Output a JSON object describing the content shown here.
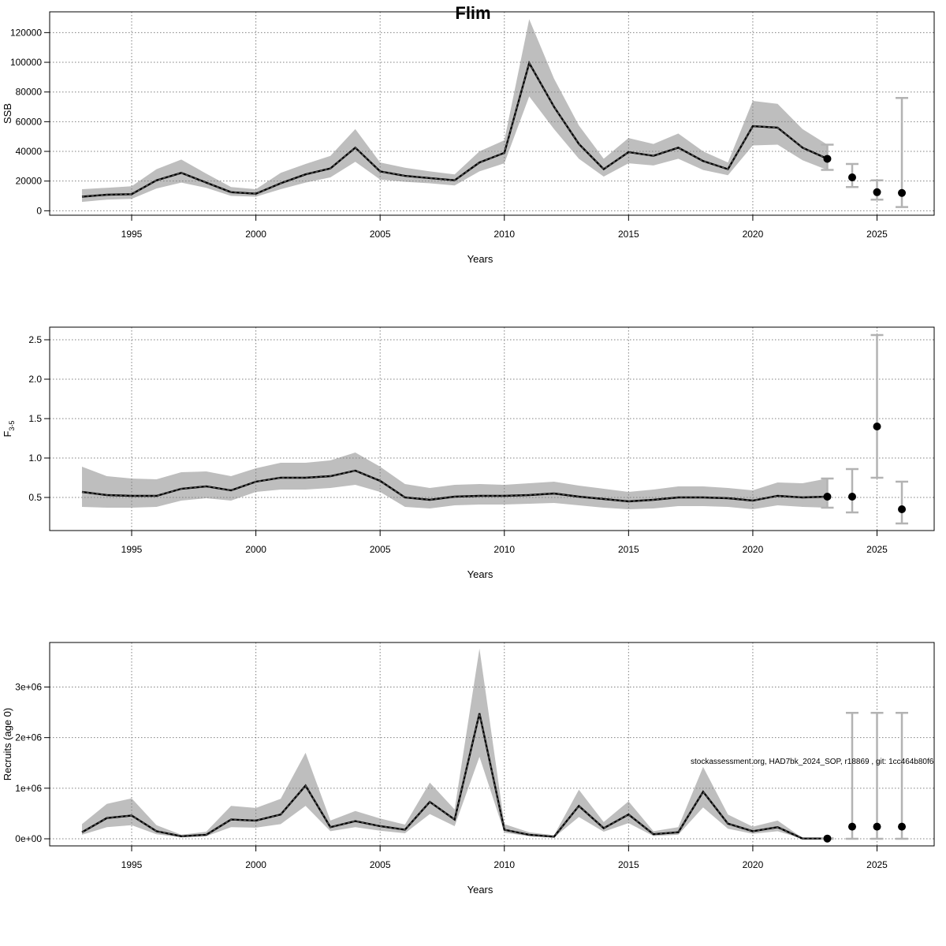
{
  "title": "Flim",
  "credit": "stockassessment.org, HAD7bk_2024_SOP, r18869 , git: 1cc464b80f6",
  "colors": {
    "band": "#bebebe",
    "line": "#000000",
    "grid": "#808080",
    "errorbar": "#b3b3b3"
  },
  "chart_data": [
    {
      "type": "line",
      "ylabel": "SSB",
      "xlabel": "Years",
      "xlim": [
        1991.7,
        2027.3
      ],
      "ylim": [
        -3000,
        134000
      ],
      "xticks": [
        1995,
        2000,
        2005,
        2010,
        2015,
        2020,
        2025
      ],
      "yticks": [
        0,
        20000,
        40000,
        60000,
        80000,
        100000,
        120000
      ],
      "ytick_labels": [
        "0",
        "20000",
        "40000",
        "60000",
        "80000",
        "100000",
        "120000"
      ],
      "grid": true,
      "series": [
        {
          "x": [
            1993,
            1994,
            1995,
            1996,
            1997,
            1998,
            1999,
            2000,
            2001,
            2002,
            2003,
            2004,
            2005,
            2006,
            2007,
            2008,
            2009,
            2010,
            2011,
            2012,
            2013,
            2014,
            2015,
            2016,
            2017,
            2018,
            2019,
            2020,
            2021,
            2022,
            2023
          ],
          "estimate": [
            9500,
            10800,
            11200,
            20500,
            25500,
            19000,
            12500,
            11500,
            18500,
            24500,
            28500,
            42500,
            26500,
            23500,
            22000,
            20500,
            32500,
            39000,
            99500,
            70000,
            45000,
            28000,
            39500,
            37000,
            42500,
            33500,
            28000,
            57000,
            56000,
            42500,
            35000
          ],
          "lower": [
            6000,
            7500,
            8000,
            15000,
            19000,
            15500,
            10000,
            9500,
            14500,
            19000,
            22500,
            33000,
            21000,
            19500,
            18500,
            17000,
            26500,
            32000,
            77000,
            55000,
            35000,
            23000,
            32000,
            30500,
            35000,
            27500,
            24000,
            44000,
            44500,
            34000,
            27500
          ],
          "upper": [
            14500,
            15500,
            16500,
            28000,
            34500,
            25000,
            16000,
            14500,
            25500,
            31500,
            37000,
            55000,
            32500,
            29000,
            26500,
            24500,
            40000,
            47500,
            129000,
            89000,
            57500,
            35000,
            49000,
            45000,
            52000,
            40000,
            32500,
            74000,
            72000,
            55000,
            44500
          ]
        }
      ],
      "forecast": {
        "x": [
          2023,
          2024,
          2025,
          2026
        ],
        "values": [
          35000,
          22500,
          12500,
          12000
        ],
        "lower": [
          27500,
          16000,
          7500,
          2500
        ],
        "upper": [
          44500,
          31500,
          20500,
          76000
        ]
      }
    },
    {
      "type": "line",
      "ylabel": "F",
      "ylabel_sub": "3-5",
      "xlabel": "Years",
      "xlim": [
        1991.7,
        2027.3
      ],
      "ylim": [
        0.08,
        2.66
      ],
      "xticks": [
        1995,
        2000,
        2005,
        2010,
        2015,
        2020,
        2025
      ],
      "yticks": [
        0.5,
        1.0,
        1.5,
        2.0,
        2.5
      ],
      "ytick_labels": [
        "0.5",
        "1.0",
        "1.5",
        "2.0",
        "2.5"
      ],
      "grid": true,
      "series": [
        {
          "x": [
            1993,
            1994,
            1995,
            1996,
            1997,
            1998,
            1999,
            2000,
            2001,
            2002,
            2003,
            2004,
            2005,
            2006,
            2007,
            2008,
            2009,
            2010,
            2011,
            2012,
            2013,
            2014,
            2015,
            2016,
            2017,
            2018,
            2019,
            2020,
            2021,
            2022,
            2023
          ],
          "estimate": [
            0.57,
            0.53,
            0.52,
            0.52,
            0.61,
            0.64,
            0.59,
            0.7,
            0.75,
            0.75,
            0.77,
            0.84,
            0.71,
            0.5,
            0.47,
            0.51,
            0.52,
            0.52,
            0.53,
            0.55,
            0.51,
            0.48,
            0.45,
            0.47,
            0.5,
            0.5,
            0.49,
            0.46,
            0.52,
            0.5,
            0.51
          ],
          "lower": [
            0.38,
            0.37,
            0.37,
            0.38,
            0.46,
            0.49,
            0.46,
            0.57,
            0.6,
            0.6,
            0.62,
            0.66,
            0.57,
            0.38,
            0.36,
            0.4,
            0.41,
            0.41,
            0.42,
            0.43,
            0.4,
            0.37,
            0.35,
            0.36,
            0.39,
            0.39,
            0.38,
            0.35,
            0.4,
            0.38,
            0.37
          ],
          "upper": [
            0.89,
            0.77,
            0.74,
            0.73,
            0.82,
            0.83,
            0.77,
            0.87,
            0.94,
            0.94,
            0.97,
            1.07,
            0.89,
            0.67,
            0.62,
            0.66,
            0.67,
            0.66,
            0.68,
            0.7,
            0.65,
            0.61,
            0.57,
            0.6,
            0.64,
            0.64,
            0.62,
            0.59,
            0.69,
            0.68,
            0.74
          ]
        }
      ],
      "forecast": {
        "x": [
          2023,
          2024,
          2025,
          2026
        ],
        "values": [
          0.51,
          0.51,
          1.4,
          0.35
        ],
        "lower": [
          0.37,
          0.31,
          0.75,
          0.17
        ],
        "upper": [
          0.74,
          0.86,
          2.56,
          0.7
        ]
      }
    },
    {
      "type": "line",
      "ylabel": "Recruits (age 0)",
      "xlabel": "Years",
      "xlim": [
        1991.7,
        2027.3
      ],
      "ylim": [
        -140000,
        3880000
      ],
      "xticks": [
        1995,
        2000,
        2005,
        2010,
        2015,
        2020,
        2025
      ],
      "yticks": [
        0,
        1000000,
        2000000,
        3000000
      ],
      "ytick_labels": [
        "0e+00",
        "1e+06",
        "2e+06",
        "3e+06"
      ],
      "grid": true,
      "series": [
        {
          "x": [
            1993,
            1994,
            1995,
            1996,
            1997,
            1998,
            1999,
            2000,
            2001,
            2002,
            2003,
            2004,
            2005,
            2006,
            2007,
            2008,
            2009,
            2010,
            2011,
            2012,
            2013,
            2014,
            2015,
            2016,
            2017,
            2018,
            2019,
            2020,
            2021,
            2022,
            2023
          ],
          "estimate": [
            130000,
            410000,
            460000,
            150000,
            50000,
            80000,
            380000,
            360000,
            480000,
            1050000,
            230000,
            350000,
            250000,
            180000,
            730000,
            380000,
            2480000,
            180000,
            80000,
            40000,
            650000,
            210000,
            480000,
            90000,
            130000,
            930000,
            300000,
            150000,
            230000,
            5000,
            5000
          ],
          "lower": [
            80000,
            230000,
            270000,
            90000,
            30000,
            50000,
            230000,
            220000,
            290000,
            650000,
            150000,
            230000,
            160000,
            110000,
            490000,
            250000,
            1620000,
            120000,
            50000,
            25000,
            430000,
            140000,
            310000,
            55000,
            80000,
            620000,
            200000,
            100000,
            150000,
            2000,
            1000
          ],
          "upper": [
            290000,
            690000,
            800000,
            270000,
            80000,
            140000,
            650000,
            610000,
            790000,
            1700000,
            360000,
            550000,
            400000,
            280000,
            1110000,
            580000,
            3760000,
            290000,
            130000,
            70000,
            970000,
            330000,
            740000,
            150000,
            230000,
            1420000,
            480000,
            240000,
            360000,
            15000,
            10000
          ]
        }
      ],
      "forecast": {
        "x": [
          2023,
          2024,
          2025,
          2026
        ],
        "values": [
          5000,
          240000,
          240000,
          240000
        ],
        "lower": [
          1000,
          0,
          0,
          0
        ],
        "upper": [
          10000,
          2490000,
          2490000,
          2490000
        ]
      }
    }
  ]
}
